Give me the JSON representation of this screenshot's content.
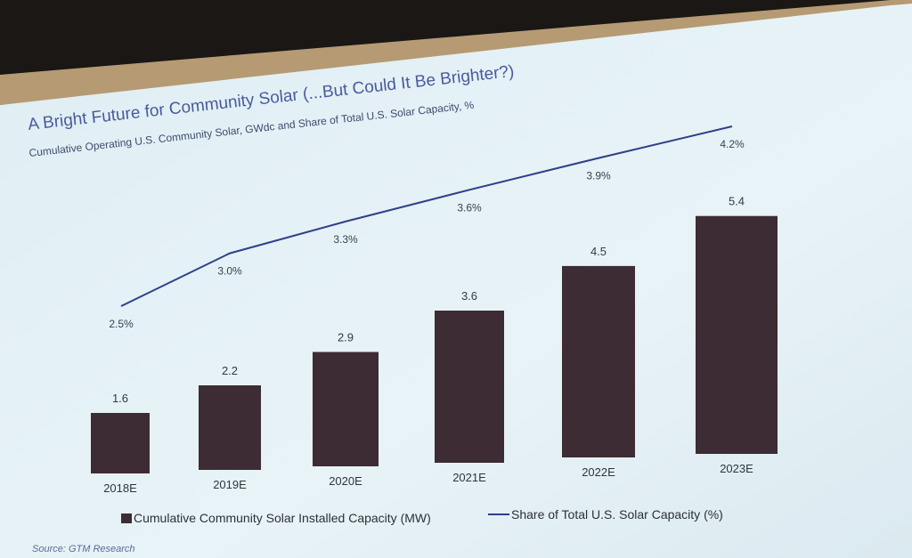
{
  "slide": {
    "title": "A Bright Future for Community Solar (...But Could It Be Brighter?)",
    "subtitle": "Cumulative Operating U.S. Community Solar, GWdc and Share of Total U.S. Solar Capacity, %",
    "source": "Source: GTM Research",
    "colors": {
      "bar": "#3d2c33",
      "line": "#2f3f8a",
      "background": "#e6f1f6",
      "frame": "#b59a73"
    }
  },
  "chart_data": {
    "type": "bar",
    "categories": [
      "2018E",
      "2019E",
      "2020E",
      "2021E",
      "2022E",
      "2023E"
    ],
    "series": [
      {
        "name": "Cumulative Community Solar Installed Capacity (MW)",
        "type": "bar",
        "values": [
          1.6,
          2.2,
          2.9,
          3.6,
          4.5,
          5.4
        ],
        "labels": [
          "1.6",
          "2.2",
          "2.9",
          "3.6",
          "4.5",
          "5.4"
        ]
      },
      {
        "name": "Share of Total U.S. Solar Capacity (%)",
        "type": "line",
        "values": [
          2.5,
          3.0,
          3.3,
          3.6,
          3.9,
          4.2
        ],
        "labels": [
          "2.5%",
          "3.0%",
          "3.3%",
          "3.6%",
          "3.9%",
          "4.2%"
        ]
      }
    ],
    "legend": "bottom",
    "grid": false
  }
}
